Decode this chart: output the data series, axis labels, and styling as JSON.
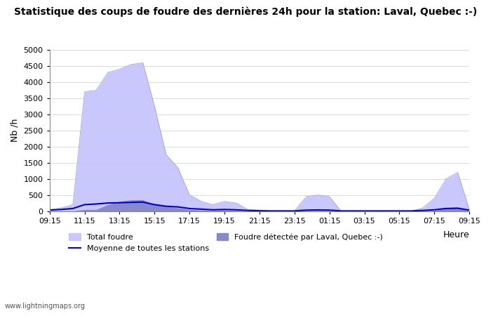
{
  "title": "Statistique des coups de foudre des dernières 24h pour la station: Laval, Quebec :-)",
  "xlabel": "Heure",
  "ylabel": "Nb /h",
  "x_labels": [
    "09:15",
    "11:15",
    "13:15",
    "15:15",
    "17:15",
    "19:15",
    "21:15",
    "23:15",
    "01:15",
    "03:15",
    "05:15",
    "07:15",
    "09:15"
  ],
  "ylim": [
    0,
    5000
  ],
  "yticks": [
    0,
    500,
    1000,
    1500,
    2000,
    2500,
    3000,
    3500,
    4000,
    4500,
    5000
  ],
  "total_foudre_color": "#c8c8ff",
  "total_foudre_edge": "#9898d8",
  "laval_foudre_color": "#8888cc",
  "moyenne_color": "#0000cc",
  "background_color": "#ffffff",
  "plot_bg_color": "#ffffff",
  "grid_color": "#cccccc",
  "watermark": "www.lightningmaps.org",
  "legend_total": "Total foudre",
  "legend_moyenne": "Moyenne de toutes les stations",
  "legend_laval": "Foudre détectée par Laval, Quebec :-)",
  "total_foudre": [
    50,
    100,
    200,
    3700,
    3750,
    4300,
    4400,
    4550,
    4600,
    3250,
    1750,
    1350,
    500,
    300,
    200,
    300,
    250,
    50,
    30,
    0,
    0,
    0,
    450,
    500,
    450,
    0,
    0,
    0,
    0,
    0,
    0,
    0,
    100,
    400,
    1000,
    1200,
    50
  ],
  "laval_foudre": [
    0,
    0,
    0,
    50,
    50,
    200,
    300,
    350,
    350,
    200,
    150,
    100,
    50,
    30,
    20,
    30,
    20,
    0,
    0,
    0,
    0,
    0,
    10,
    10,
    10,
    0,
    0,
    0,
    0,
    0,
    0,
    0,
    10,
    20,
    80,
    100,
    0
  ],
  "moyenne": [
    30,
    50,
    80,
    200,
    220,
    250,
    260,
    270,
    280,
    200,
    150,
    130,
    80,
    60,
    40,
    50,
    40,
    20,
    10,
    5,
    5,
    5,
    30,
    35,
    30,
    5,
    5,
    5,
    5,
    5,
    5,
    5,
    20,
    40,
    80,
    90,
    30
  ],
  "n_points": 37
}
